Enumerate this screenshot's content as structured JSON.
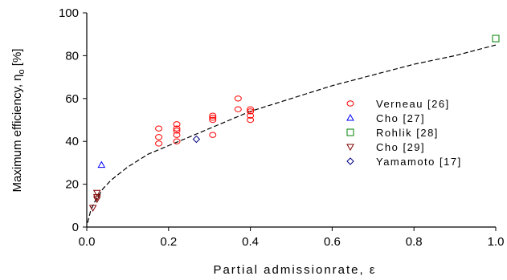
{
  "chart_data": {
    "type": "scatter",
    "xlabel": "Partial admissionrate, ε",
    "ylabel": "Maximum efficiency, η",
    "ylabel_sub": "o",
    "ylabel_unit": "[%]",
    "xlim": [
      0.0,
      1.0
    ],
    "ylim": [
      0,
      100
    ],
    "x_ticks": [
      0.0,
      0.2,
      0.4,
      0.6,
      0.8,
      1.0
    ],
    "x_tick_labels": [
      "0.0",
      "0.2",
      "0.4",
      "0.6",
      "0.8",
      "1.0"
    ],
    "y_ticks": [
      0,
      20,
      40,
      60,
      80,
      100
    ],
    "y_tick_labels": [
      "0",
      "20",
      "40",
      "60",
      "80",
      "100"
    ],
    "grid": false,
    "legend_position": "right",
    "series": [
      {
        "name": "Verneau [26]",
        "marker": "circle",
        "color": "#ff0000",
        "points": [
          [
            0.176,
            46
          ],
          [
            0.176,
            42
          ],
          [
            0.176,
            39
          ],
          [
            0.22,
            48
          ],
          [
            0.22,
            46
          ],
          [
            0.22,
            45
          ],
          [
            0.22,
            43
          ],
          [
            0.22,
            40
          ],
          [
            0.308,
            52
          ],
          [
            0.308,
            51
          ],
          [
            0.308,
            50
          ],
          [
            0.308,
            43
          ],
          [
            0.37,
            60
          ],
          [
            0.37,
            55
          ],
          [
            0.4,
            55
          ],
          [
            0.4,
            54
          ],
          [
            0.4,
            52
          ],
          [
            0.4,
            50
          ]
        ]
      },
      {
        "name": "Cho [27]",
        "marker": "triangle-up",
        "color": "#0000ff",
        "points": [
          [
            0.036,
            29
          ]
        ]
      },
      {
        "name": "Rohlik [28]",
        "marker": "square",
        "color": "#008000",
        "points": [
          [
            1.0,
            88
          ]
        ]
      },
      {
        "name": "Cho [29]",
        "marker": "triangle-down",
        "color": "#800000",
        "points": [
          [
            0.015,
            9
          ],
          [
            0.025,
            16
          ],
          [
            0.025,
            14
          ],
          [
            0.025,
            13
          ]
        ]
      },
      {
        "name": "Yamamoto [17]",
        "marker": "diamond",
        "color": "#000080",
        "points": [
          [
            0.268,
            41
          ]
        ]
      }
    ],
    "fit_curve": {
      "style": "dashed",
      "color": "#000000",
      "points": [
        [
          0.002,
          2
        ],
        [
          0.01,
          8
        ],
        [
          0.02,
          12
        ],
        [
          0.04,
          18
        ],
        [
          0.06,
          22
        ],
        [
          0.1,
          28
        ],
        [
          0.15,
          34
        ],
        [
          0.2,
          38
        ],
        [
          0.25,
          42
        ],
        [
          0.3,
          46
        ],
        [
          0.35,
          50
        ],
        [
          0.4,
          54
        ],
        [
          0.5,
          60
        ],
        [
          0.6,
          66
        ],
        [
          0.7,
          71
        ],
        [
          0.8,
          76
        ],
        [
          0.9,
          80
        ],
        [
          1.0,
          85
        ]
      ]
    }
  }
}
